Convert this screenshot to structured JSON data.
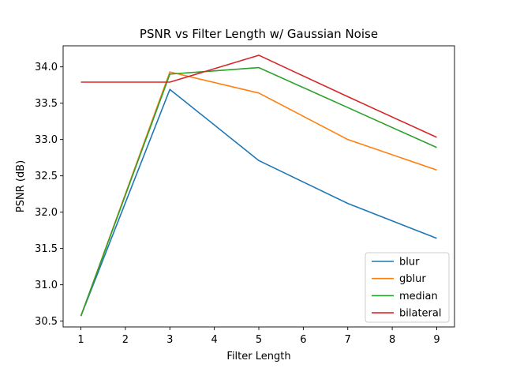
{
  "chart_data": {
    "type": "line",
    "title": "PSNR vs Filter Length w/ Gaussian Noise",
    "xlabel": "Filter Length",
    "ylabel": "PSNR (dB)",
    "xlim": [
      0.6,
      9.4
    ],
    "ylim": [
      30.42,
      34.29
    ],
    "xticks": [
      1,
      2,
      3,
      4,
      5,
      6,
      7,
      8,
      9
    ],
    "yticks": [
      30.5,
      31.0,
      31.5,
      32.0,
      32.5,
      33.0,
      33.5,
      34.0
    ],
    "ytick_labels": [
      "30.5",
      "31.0",
      "31.5",
      "32.0",
      "32.5",
      "33.0",
      "33.5",
      "34.0"
    ],
    "grid": false,
    "legend_position": "bottom-right",
    "x": [
      1,
      3,
      5,
      7,
      9
    ],
    "series": [
      {
        "name": "blur",
        "color": "#1f77b4",
        "values": [
          30.57,
          33.69,
          32.71,
          32.12,
          31.64
        ]
      },
      {
        "name": "gblur",
        "color": "#ff7f0e",
        "values": [
          30.57,
          33.93,
          33.64,
          33.0,
          32.58
        ]
      },
      {
        "name": "median",
        "color": "#2ca02c",
        "values": [
          30.57,
          33.9,
          33.99,
          33.44,
          32.89
        ]
      },
      {
        "name": "bilateral",
        "color": "#d62728",
        "values": [
          33.79,
          33.79,
          34.16,
          33.59,
          33.03
        ]
      }
    ]
  }
}
